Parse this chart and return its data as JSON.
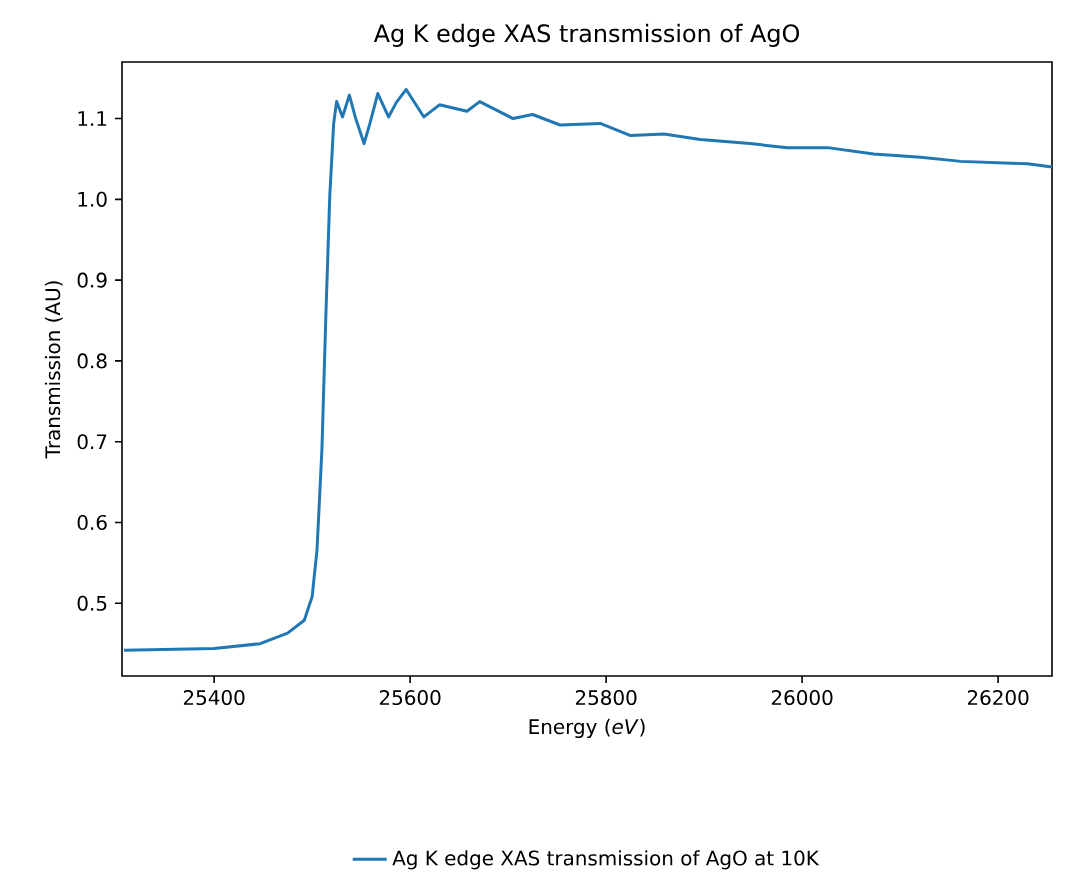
{
  "chart_data": {
    "type": "line",
    "title": "Ag K edge XAS transmission of AgO",
    "xlabel": "Energy (*eV*)",
    "ylabel": "Transmission (AU)",
    "xlim": [
      25306,
      26255
    ],
    "ylim": [
      0.41,
      1.17
    ],
    "xticks": [
      25400,
      25600,
      25800,
      26000,
      26200
    ],
    "yticks": [
      0.5,
      0.6,
      0.7,
      0.8,
      0.9,
      {
        "value": 1.0,
        "label": "1.0"
      },
      1.1
    ],
    "grid": false,
    "legend": "bottom",
    "series": [
      {
        "name": "Ag K edge XAS transmission of AgO at 10K",
        "color": "#1f77b4",
        "x": [
          25308,
          25400,
          25447,
          25475,
          25492,
          25500,
          25505,
          25510,
          25514,
          25518,
          25522,
          25525,
          25531,
          25538,
          25544,
          25553,
          25559,
          25567,
          25578,
          25586,
          25596,
          25614,
          25630,
          25658,
          25671,
          25705,
          25725,
          25753,
          25794,
          25825,
          25859,
          25896,
          25947,
          25985,
          26026,
          26073,
          26121,
          26162,
          26230,
          26255
        ],
        "values": [
          0.442,
          0.444,
          0.45,
          0.463,
          0.479,
          0.508,
          0.566,
          0.69,
          0.855,
          1.004,
          1.094,
          1.121,
          1.102,
          1.129,
          1.102,
          1.069,
          1.094,
          1.131,
          1.102,
          1.12,
          1.136,
          1.102,
          1.117,
          1.109,
          1.121,
          1.1,
          1.105,
          1.092,
          1.094,
          1.079,
          1.081,
          1.074,
          1.069,
          1.064,
          1.064,
          1.056,
          1.052,
          1.047,
          1.044,
          1.04
        ]
      }
    ]
  }
}
